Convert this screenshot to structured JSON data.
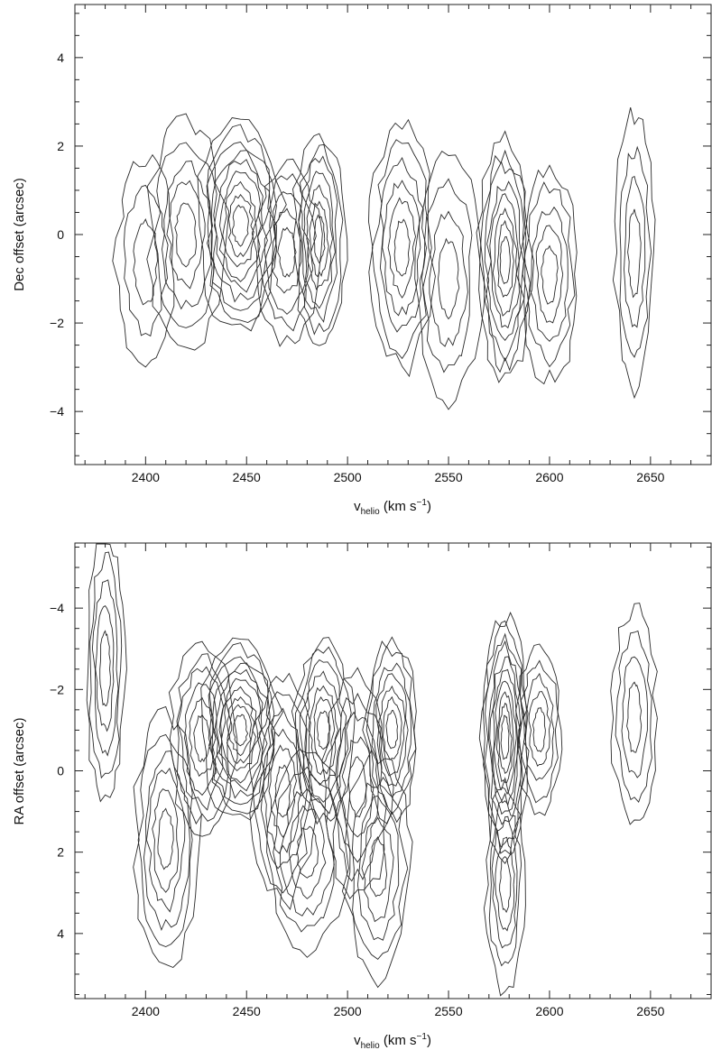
{
  "chart_data": [
    {
      "type": "contour",
      "panel": "top",
      "xlabel": "v",
      "xlabel_sub": "helio",
      "xlabel_unit_pre": " (km s",
      "xlabel_sup": "−1",
      "xlabel_unit_post": ")",
      "ylabel": "Dec offset (arcsec)",
      "xlim": [
        2365,
        2680
      ],
      "ylim": [
        -5.2,
        5.2
      ],
      "y_inverted": false,
      "xticks": [
        2400,
        2450,
        2500,
        2550,
        2600,
        2650
      ],
      "xtick_labels": [
        "2400",
        "2450",
        "2500",
        "2550",
        "2600",
        "2650"
      ],
      "yticks": [
        4,
        2,
        0,
        -2,
        -4
      ],
      "ytick_labels": [
        "4",
        "2",
        "0",
        "−2",
        "−4"
      ],
      "grid": false,
      "contour_levels": 9,
      "emission_peaks": [
        {
          "v": 2447,
          "offset": 0.2,
          "strength": 1.0,
          "dv": 13,
          "doff": 1.4
        },
        {
          "v": 2420,
          "offset": 0.0,
          "strength": 0.55,
          "dv": 12,
          "doff": 1.5
        },
        {
          "v": 2486,
          "offset": -0.1,
          "strength": 0.75,
          "dv": 8,
          "doff": 1.4
        },
        {
          "v": 2470,
          "offset": -0.4,
          "strength": 0.5,
          "dv": 10,
          "doff": 1.2
        },
        {
          "v": 2527,
          "offset": -0.3,
          "strength": 0.65,
          "dv": 10,
          "doff": 1.6
        },
        {
          "v": 2550,
          "offset": -1.0,
          "strength": 0.45,
          "dv": 10,
          "doff": 1.6
        },
        {
          "v": 2578,
          "offset": -0.6,
          "strength": 0.9,
          "dv": 8,
          "doff": 1.6
        },
        {
          "v": 2600,
          "offset": -0.9,
          "strength": 0.55,
          "dv": 9,
          "doff": 1.4
        },
        {
          "v": 2642,
          "offset": -0.4,
          "strength": 0.45,
          "dv": 6,
          "doff": 1.8
        },
        {
          "v": 2400,
          "offset": -0.6,
          "strength": 0.35,
          "dv": 9,
          "doff": 1.4
        }
      ]
    },
    {
      "type": "contour",
      "panel": "bottom",
      "xlabel": "v",
      "xlabel_sub": "helio",
      "xlabel_unit_pre": " (km s",
      "xlabel_sup": "−1",
      "xlabel_unit_post": ")",
      "ylabel": "RA offset (arcsec)",
      "xlim": [
        2365,
        2680
      ],
      "ylim": [
        5.6,
        -5.6
      ],
      "y_inverted": true,
      "xticks": [
        2400,
        2450,
        2500,
        2550,
        2600,
        2650
      ],
      "xtick_labels": [
        "2400",
        "2450",
        "2500",
        "2550",
        "2600",
        "2650"
      ],
      "yticks": [
        -4,
        -2,
        0,
        2,
        4
      ],
      "ytick_labels": [
        "−4",
        "−2",
        "0",
        "2",
        "4"
      ],
      "grid": false,
      "contour_levels": 10,
      "emission_peaks": [
        {
          "v": 2447,
          "offset": -1.0,
          "strength": 1.0,
          "dv": 12,
          "doff": 1.3
        },
        {
          "v": 2410,
          "offset": 1.7,
          "strength": 0.55,
          "dv": 10,
          "doff": 1.8
        },
        {
          "v": 2428,
          "offset": -0.8,
          "strength": 0.55,
          "dv": 10,
          "doff": 1.4
        },
        {
          "v": 2488,
          "offset": -1.0,
          "strength": 0.7,
          "dv": 9,
          "doff": 1.3
        },
        {
          "v": 2468,
          "offset": 0.5,
          "strength": 0.55,
          "dv": 10,
          "doff": 1.6
        },
        {
          "v": 2480,
          "offset": 2.0,
          "strength": 0.5,
          "dv": 12,
          "doff": 1.4
        },
        {
          "v": 2505,
          "offset": 0.4,
          "strength": 0.5,
          "dv": 10,
          "doff": 1.6
        },
        {
          "v": 2522,
          "offset": -1.0,
          "strength": 0.65,
          "dv": 8,
          "doff": 1.3
        },
        {
          "v": 2515,
          "offset": 2.4,
          "strength": 0.5,
          "dv": 10,
          "doff": 1.6
        },
        {
          "v": 2578,
          "offset": -0.8,
          "strength": 0.95,
          "dv": 7,
          "doff": 1.8
        },
        {
          "v": 2595,
          "offset": -1.0,
          "strength": 0.5,
          "dv": 7,
          "doff": 1.2
        },
        {
          "v": 2578,
          "offset": 2.8,
          "strength": 0.5,
          "dv": 6,
          "doff": 1.5
        },
        {
          "v": 2380,
          "offset": -2.5,
          "strength": 0.45,
          "dv": 6,
          "doff": 2.0
        },
        {
          "v": 2642,
          "offset": -1.3,
          "strength": 0.4,
          "dv": 7,
          "doff": 1.6
        }
      ]
    }
  ]
}
